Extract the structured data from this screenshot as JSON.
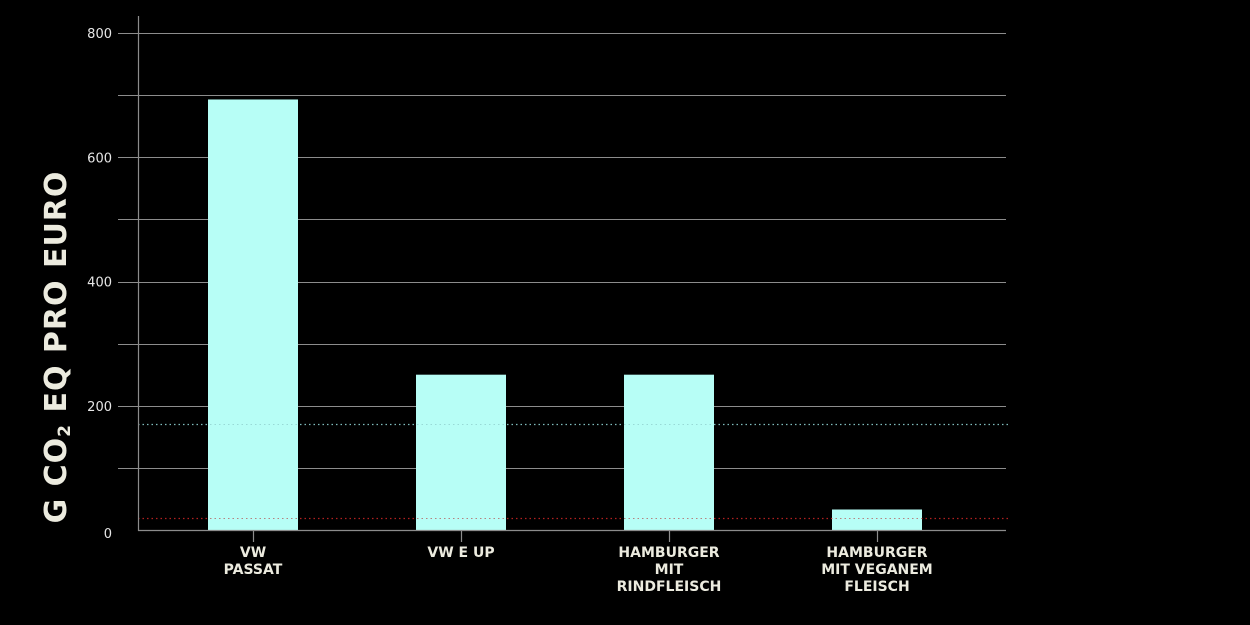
{
  "chart_data": {
    "type": "bar",
    "title": "",
    "xlabel": "",
    "ylabel_parts": [
      "G CO",
      "2",
      " EQ PRO EURO"
    ],
    "categories": [
      [
        "VW",
        "PASSAT"
      ],
      [
        "VW E UP"
      ],
      [
        "HAMBURGER",
        "MIT",
        "RINDFLEISCH"
      ],
      [
        "HAMBURGER",
        "MIT VEGANEM",
        "FLEISCH"
      ]
    ],
    "values": [
      693,
      250,
      250,
      33
    ],
    "ylim": [
      0,
      830
    ],
    "yticks": [
      0,
      200,
      400,
      600,
      800
    ],
    "grid_values": [
      0,
      100,
      200,
      300,
      400,
      500,
      600,
      700,
      800
    ],
    "reference_lines": [
      {
        "value": 170,
        "color": "#7fbcbc",
        "style": "dotted"
      },
      {
        "value": 20,
        "color": "#b32020",
        "style": "dotted"
      }
    ],
    "grid": true,
    "bar_color": "#b7fef6",
    "background": "#000000"
  }
}
